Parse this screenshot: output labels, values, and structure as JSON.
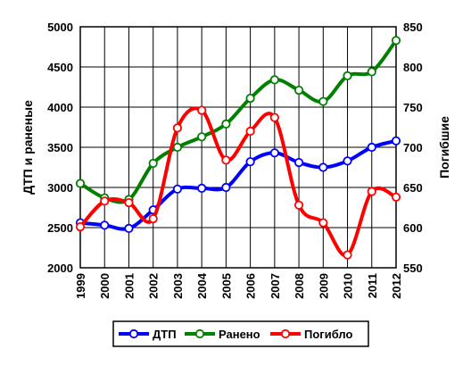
{
  "chart_data": {
    "type": "line",
    "categories": [
      "1999",
      "2000",
      "2001",
      "2002",
      "2003",
      "2004",
      "2005",
      "2006",
      "2007",
      "2008",
      "2009",
      "2010",
      "2011",
      "2012"
    ],
    "ylabel_left": "ДТП и раненые",
    "ylabel_right": "Погибшие",
    "ylim_left": [
      2000,
      5000
    ],
    "ylim_right": [
      550,
      850
    ],
    "yticks_left": [
      "2000",
      "2500",
      "3000",
      "3500",
      "4000",
      "4500",
      "5000"
    ],
    "yticks_right": [
      "550",
      "600",
      "650",
      "700",
      "750",
      "800",
      "850"
    ],
    "grid": true,
    "legend_position": "bottom",
    "series": [
      {
        "name": "ДТП",
        "axis": "left",
        "color": "#0000ff",
        "values": [
          2560,
          2530,
          2490,
          2720,
          2980,
          2990,
          3000,
          3320,
          3430,
          3310,
          3250,
          3330,
          3500,
          3580
        ]
      },
      {
        "name": "Ранено",
        "axis": "left",
        "color": "#008000",
        "values": [
          3050,
          2870,
          2850,
          3300,
          3500,
          3630,
          3790,
          4110,
          4340,
          4210,
          4070,
          4390,
          4440,
          4830
        ]
      },
      {
        "name": "Погибло",
        "axis": "right",
        "color": "#ff0000",
        "values": [
          601,
          633,
          631,
          611,
          724,
          746,
          684,
          720,
          737,
          628,
          606,
          566,
          645,
          638
        ]
      }
    ]
  }
}
